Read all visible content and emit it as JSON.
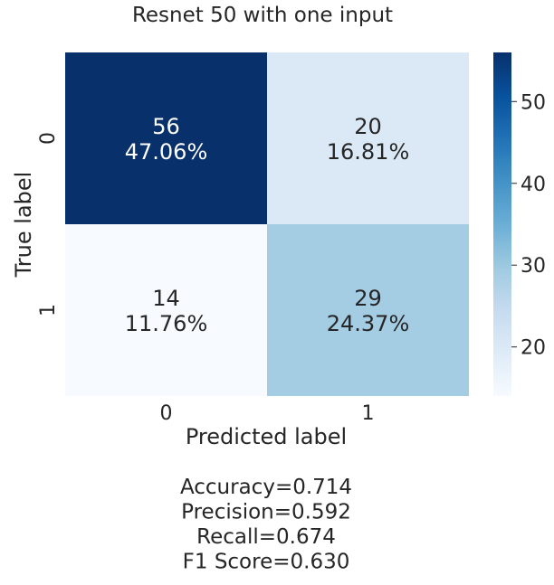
{
  "chart_data": {
    "type": "heatmap",
    "title": "Resnet 50 with one input",
    "xlabel": "Predicted label",
    "ylabel": "True label",
    "x_categories": [
      "0",
      "1"
    ],
    "y_categories": [
      "0",
      "1"
    ],
    "values": [
      [
        56,
        20
      ],
      [
        14,
        29
      ]
    ],
    "cell_labels": [
      [
        "56\n47.06%",
        "20\n16.81%"
      ],
      [
        "14\n11.76%",
        "29\n24.37%"
      ]
    ],
    "colorbar": {
      "range": [
        14,
        56
      ],
      "ticks": [
        20,
        30,
        40,
        50
      ],
      "tick_labels": [
        "20",
        "30",
        "40",
        "50"
      ],
      "colormap": "Blues"
    },
    "metrics": [
      "Accuracy=0.714",
      "Precision=0.592",
      "Recall=0.674",
      "F1 Score=0.630"
    ]
  }
}
